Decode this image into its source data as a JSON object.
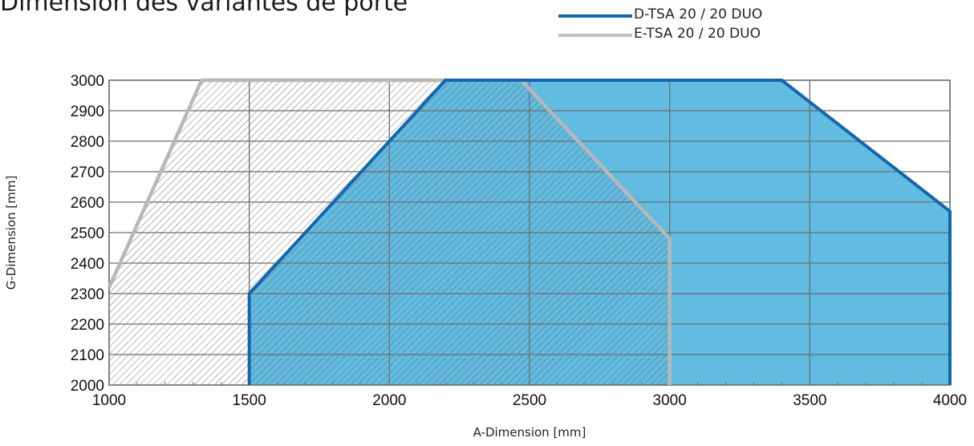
{
  "page": {
    "title": "Dimension des variantes de porte"
  },
  "chart_data": {
    "type": "area",
    "xlabel": "A-Dimension [mm]",
    "ylabel": "G-Dimension [mm]",
    "xlim": [
      1000,
      4000
    ],
    "ylim": [
      2000,
      3000
    ],
    "x_ticks": [
      "1000",
      "1500",
      "2000",
      "2500",
      "3000",
      "3500",
      "4000"
    ],
    "y_ticks": [
      "2000",
      "2100",
      "2200",
      "2300",
      "2400",
      "2500",
      "2600",
      "2700",
      "2800",
      "2900",
      "3000"
    ],
    "grid": true,
    "legend_position": "top-right",
    "series": [
      {
        "name": "D-TSA 20 / 20 DUO",
        "color": "#1466ad",
        "fill": "#62bbe0",
        "points": [
          [
            1500,
            2000
          ],
          [
            1500,
            2300
          ],
          [
            2200,
            3000
          ],
          [
            3400,
            3000
          ],
          [
            4000,
            2570
          ],
          [
            4000,
            2000
          ]
        ]
      },
      {
        "name": "E-TSA 20 / 20 DUO",
        "color": "#b8b8b8",
        "fill": "hatched",
        "points": [
          [
            1000,
            2000
          ],
          [
            1000,
            2320
          ],
          [
            1330,
            3000
          ],
          [
            2470,
            3000
          ],
          [
            3000,
            2480
          ],
          [
            3000,
            2000
          ]
        ]
      }
    ]
  }
}
